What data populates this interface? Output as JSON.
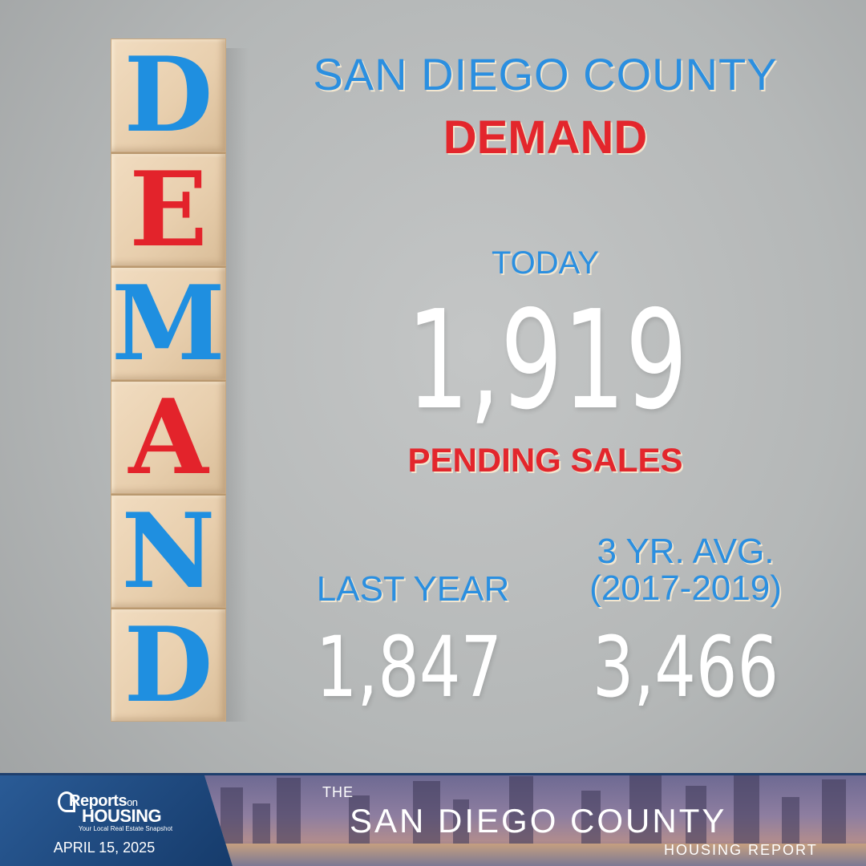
{
  "blocks": [
    {
      "letter": "D",
      "color": "#1f8fe0"
    },
    {
      "letter": "E",
      "color": "#e3232b"
    },
    {
      "letter": "M",
      "color": "#1f8fe0"
    },
    {
      "letter": "A",
      "color": "#e3232b"
    },
    {
      "letter": "N",
      "color": "#1f8fe0"
    },
    {
      "letter": "D",
      "color": "#1f8fe0"
    }
  ],
  "header": {
    "county": "SAN DIEGO COUNTY",
    "metric": "DEMAND"
  },
  "today": {
    "label": "TODAY",
    "value": "1,919",
    "unit": "PENDING SALES"
  },
  "comparisons": {
    "last_year": {
      "label": "LAST YEAR",
      "value": "1,847"
    },
    "three_yr_avg": {
      "label_line1": "3 YR. AVG.",
      "label_line2": "(2017-2019)",
      "value": "3,466"
    }
  },
  "footer": {
    "brand_reports": "Reports",
    "brand_on": "on",
    "brand_housing": "HOUSING",
    "brand_tagline": "Your Local Real Estate Snapshot",
    "date": "APRIL 15, 2025",
    "report_the": "THE",
    "report_name": "SAN DIEGO COUNTY",
    "report_sub": "HOUSING REPORT"
  },
  "colors": {
    "accent_blue": "#2b8fe0",
    "accent_red": "#e3262c",
    "footer_navy": "#1f3f6d"
  }
}
